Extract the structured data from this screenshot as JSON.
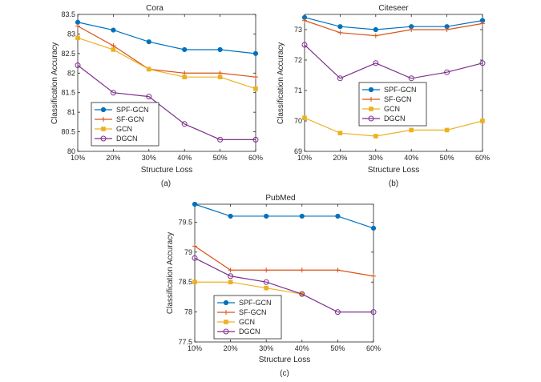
{
  "figure": {
    "captions": [
      "(a)",
      "(b)",
      "(c)"
    ]
  },
  "chart_data": [
    {
      "type": "line",
      "title": "Cora",
      "xlabel": "Structure Loss",
      "ylabel": "Classification Accuracy",
      "categories": [
        "10%",
        "20%",
        "30%",
        "40%",
        "50%",
        "60%"
      ],
      "ylim": [
        80,
        83.5
      ],
      "yticks": [
        80,
        80.5,
        81,
        81.5,
        82,
        82.5,
        83,
        83.5
      ],
      "grid": false,
      "legend_position": "bottom-left",
      "series": [
        {
          "name": "SPF-GCN",
          "color": "#0072BD",
          "marker": "dot",
          "values": [
            83.3,
            83.1,
            82.8,
            82.6,
            82.6,
            82.5
          ]
        },
        {
          "name": "SF-GCN",
          "color": "#D95319",
          "marker": "plus",
          "values": [
            83.2,
            82.7,
            82.1,
            82.0,
            82.0,
            81.9
          ]
        },
        {
          "name": "GCN",
          "color": "#EDB120",
          "marker": "square",
          "values": [
            82.9,
            82.6,
            82.1,
            81.9,
            81.9,
            81.6
          ]
        },
        {
          "name": "DGCN",
          "color": "#7E2F8E",
          "marker": "circle",
          "values": [
            82.2,
            81.5,
            81.4,
            80.7,
            80.3,
            80.3
          ]
        }
      ]
    },
    {
      "type": "line",
      "title": "Citeseer",
      "xlabel": "Structure Loss",
      "ylabel": "Classification Accuracy",
      "categories": [
        "10%",
        "20%",
        "30%",
        "40%",
        "50%",
        "60%"
      ],
      "ylim": [
        69,
        73.5
      ],
      "yticks": [
        69,
        70,
        71,
        72,
        73
      ],
      "grid": false,
      "legend_position": "middle-right",
      "series": [
        {
          "name": "SPF-GCN",
          "color": "#0072BD",
          "marker": "dot",
          "values": [
            73.4,
            73.1,
            73.0,
            73.1,
            73.1,
            73.3
          ]
        },
        {
          "name": "SF-GCN",
          "color": "#D95319",
          "marker": "plus",
          "values": [
            73.3,
            72.9,
            72.8,
            73.0,
            73.0,
            73.2
          ]
        },
        {
          "name": "GCN",
          "color": "#EDB120",
          "marker": "square",
          "values": [
            70.1,
            69.6,
            69.5,
            69.7,
            69.7,
            70.0
          ]
        },
        {
          "name": "DGCN",
          "color": "#7E2F8E",
          "marker": "circle",
          "values": [
            72.5,
            71.4,
            71.9,
            71.4,
            71.6,
            71.9
          ]
        }
      ]
    },
    {
      "type": "line",
      "title": "PubMed",
      "xlabel": "Structure Loss",
      "ylabel": "Classification Accuracy",
      "categories": [
        "10%",
        "20%",
        "30%",
        "40%",
        "50%",
        "60%"
      ],
      "ylim": [
        77.5,
        79.8
      ],
      "yticks": [
        77.5,
        78,
        78.5,
        79,
        79.5
      ],
      "grid": false,
      "legend_position": "bottom-left",
      "series": [
        {
          "name": "SPF-GCN",
          "color": "#0072BD",
          "marker": "dot",
          "values": [
            79.8,
            79.6,
            79.6,
            79.6,
            79.6,
            79.4
          ]
        },
        {
          "name": "SF-GCN",
          "color": "#D95319",
          "marker": "plus",
          "values": [
            79.1,
            78.7,
            78.7,
            78.7,
            78.7,
            78.6
          ]
        },
        {
          "name": "GCN",
          "color": "#EDB120",
          "marker": "square",
          "values": [
            78.5,
            78.5,
            78.4,
            78.3,
            null,
            null
          ]
        },
        {
          "name": "DGCN",
          "color": "#7E2F8E",
          "marker": "circle",
          "values": [
            78.9,
            78.6,
            78.5,
            78.3,
            78.0,
            78.0
          ]
        }
      ]
    }
  ]
}
